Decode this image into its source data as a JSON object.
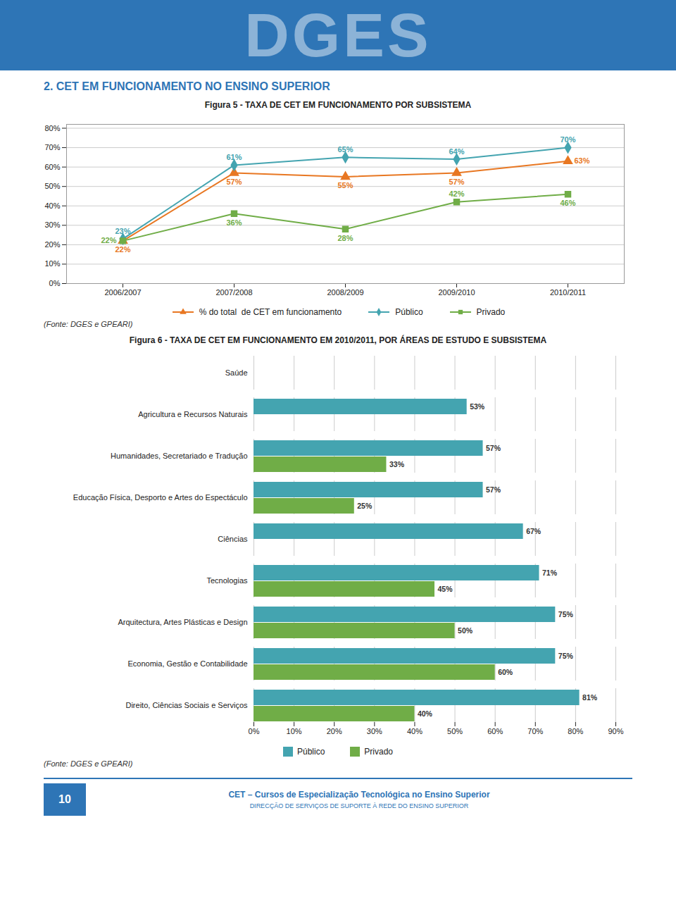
{
  "chart_data": [
    {
      "type": "line",
      "title": "Figura 5 - TAXA DE CET EM FUNCIONAMENTO POR SUBSISTEMA",
      "annotations": [
        "DGES",
        "2.   CET EM FUNCIONAMENTO NO ENSINO SUPERIOR",
        "(Fonte: DGES e GPEARI)"
      ],
      "categories": [
        "2006/2007",
        "2007/2008",
        "2008/2009",
        "2009/2010",
        "2010/2011"
      ],
      "series": [
        {
          "name": "% do total  de CET em funcionamento",
          "color": "#E87722",
          "marker": "triangle",
          "values": [
            0.22,
            0.57,
            0.55,
            0.57,
            0.63
          ],
          "value_labels": [
            "22%",
            "57%",
            "55%",
            "57%",
            "63%"
          ]
        },
        {
          "name": "Público",
          "color": "#44A4B0",
          "marker": "diamond",
          "values": [
            0.23,
            0.61,
            0.65,
            0.64,
            0.7
          ],
          "value_labels": [
            "23%",
            "61%",
            "65%",
            "64%",
            "70%"
          ]
        },
        {
          "name": "Privado",
          "color": "#70AD47",
          "marker": "square",
          "values": [
            0.22,
            0.36,
            0.28,
            0.42,
            0.46
          ],
          "value_labels": [
            "22%",
            "36%",
            "28%",
            "42%",
            "46%"
          ]
        }
      ],
      "ylim": [
        0.0,
        0.82
      ],
      "yticks": [
        {
          "value": 0.0,
          "label": "0%"
        },
        {
          "value": 0.1,
          "label": "10%"
        },
        {
          "value": 0.2,
          "label": "20%"
        },
        {
          "value": 0.3,
          "label": "30%"
        },
        {
          "value": 0.4,
          "label": "40%"
        },
        {
          "value": 0.5,
          "label": "50%"
        },
        {
          "value": 0.6,
          "label": "60%"
        },
        {
          "value": 0.7,
          "label": "70%"
        },
        {
          "value": 0.8,
          "label": "80%"
        }
      ],
      "grid": true,
      "legend": "bottom",
      "data_labels": true
    },
    {
      "type": "bar",
      "orientation": "horizontal",
      "title": "Figura 6 - TAXA DE CET EM FUNCIONAMENTO EM 2010/2011, POR ÁREAS DE ESTUDO E SUBSISTEMA",
      "annotations": [
        "(Fonte: DGES e GPEARI)",
        "CET – Cursos de Especialização Tecnológica no Ensino Superior",
        "DIRECÇÃO DE SERVIÇOS DE SUPORTE À REDE DO ENSINO SUPERIOR",
        "10"
      ],
      "categories": [
        "Saúde",
        "Agricultura e Recursos Naturais",
        "Humanidades, Secretariado e Tradução",
        "Educação Física, Desporto e Artes do Espectáculo",
        "Ciências",
        "Tecnologias",
        "Arquitectura, Artes Plásticas e Design",
        "Economia, Gestão e Contabilidade",
        "Direito, Ciências Sociais e Serviços"
      ],
      "series": [
        {
          "name": "Público",
          "color": "#44A4B0",
          "values": [
            0,
            0.53,
            0.57,
            0.57,
            0.67,
            0.71,
            0.75,
            0.75,
            0.81
          ],
          "value_labels": [
            null,
            "53%",
            "57%",
            "57%",
            "67%",
            "71%",
            "75%",
            "75%",
            "81%"
          ]
        },
        {
          "name": "Privado",
          "color": "#70AD47",
          "values": [
            0,
            0,
            0.33,
            0.25,
            0,
            0.45,
            0.5,
            0.6,
            0.4
          ],
          "value_labels": [
            null,
            null,
            "33%",
            "25%",
            null,
            "45%",
            "50%",
            "60%",
            "40%"
          ]
        }
      ],
      "xlim": [
        0.0,
        0.9
      ],
      "xticks": [
        {
          "value": 0.0,
          "label": "0%"
        },
        {
          "value": 0.1,
          "label": "10%"
        },
        {
          "value": 0.2,
          "label": "20%"
        },
        {
          "value": 0.3,
          "label": "30%"
        },
        {
          "value": 0.4,
          "label": "40%"
        },
        {
          "value": 0.5,
          "label": "50%"
        },
        {
          "value": 0.6,
          "label": "60%"
        },
        {
          "value": 0.7,
          "label": "70%"
        },
        {
          "value": 0.8,
          "label": "80%"
        },
        {
          "value": 0.9,
          "label": "90%"
        }
      ],
      "grid": true,
      "legend": "bottom",
      "data_labels": true
    }
  ]
}
